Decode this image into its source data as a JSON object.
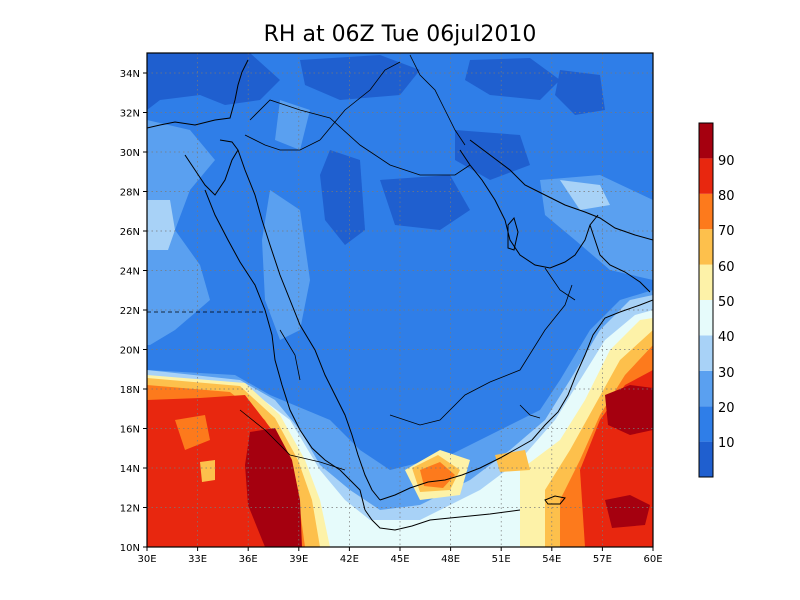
{
  "title": "RH at 06Z Tue 06jul2010",
  "map": {
    "lon_range": [
      30,
      60
    ],
    "lat_range": [
      10,
      35
    ],
    "lon_ticks": [
      "30E",
      "33E",
      "36E",
      "39E",
      "42E",
      "45E",
      "48E",
      "51E",
      "54E",
      "57E",
      "60E"
    ],
    "lat_ticks": [
      "10N",
      "12N",
      "14N",
      "16N",
      "18N",
      "20N",
      "22N",
      "24N",
      "26N",
      "28N",
      "30N",
      "32N",
      "34N"
    ],
    "grid": true
  },
  "colorbar": {
    "labels": [
      "10",
      "20",
      "30",
      "40",
      "50",
      "60",
      "70",
      "80",
      "90"
    ],
    "colors": [
      "#1f5fcf",
      "#2f7ee8",
      "#5aa0f0",
      "#a8d2f7",
      "#e6fbfb",
      "#fdf2a8",
      "#fdc04c",
      "#fd7a1c",
      "#e8270f",
      "#a5000f"
    ]
  }
}
